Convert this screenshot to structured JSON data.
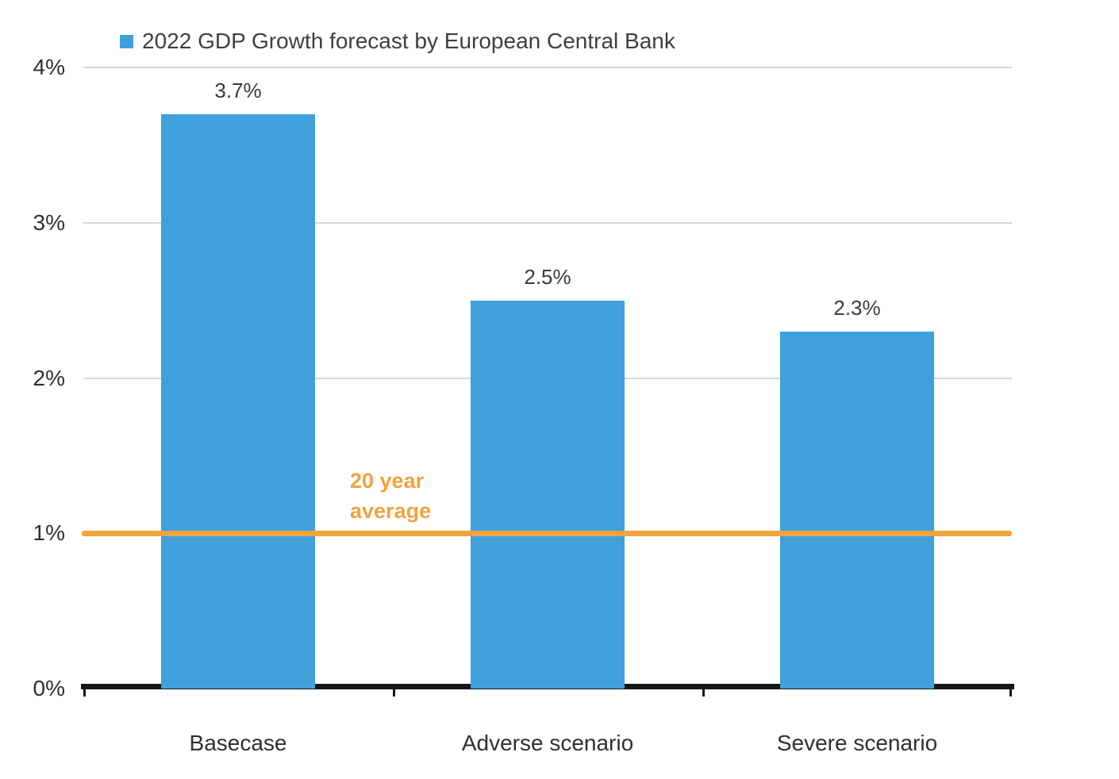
{
  "chart_data": {
    "type": "bar",
    "title": "2022 GDP Growth forecast by European Central Bank",
    "categories": [
      "Basecase",
      "Adverse scenario",
      "Severe scenario"
    ],
    "values": [
      3.7,
      2.5,
      2.3
    ],
    "value_labels": [
      "3.7%",
      "2.5%",
      "2.3%"
    ],
    "xlabel": "",
    "ylabel": "",
    "ylim": [
      0,
      4
    ],
    "yticks": [
      {
        "value": 0,
        "label": "0%"
      },
      {
        "value": 1,
        "label": "1%"
      },
      {
        "value": 2,
        "label": "2%"
      },
      {
        "value": 3,
        "label": "3%"
      },
      {
        "value": 4,
        "label": "4%"
      }
    ],
    "grid": "horizontal",
    "legend_position": "top-left",
    "bar_color": "#3FA0DC",
    "annotation": {
      "label": "20 year average",
      "value": 1.0,
      "color": "#F1A33C"
    }
  },
  "colors": {
    "background": "#FFFFFF",
    "text": "#2F2F2F",
    "value_label_text": "#3A3A3A",
    "legend_text": "#3F3F3F",
    "gridline": "#D8D8D8",
    "axis": "#161616"
  }
}
